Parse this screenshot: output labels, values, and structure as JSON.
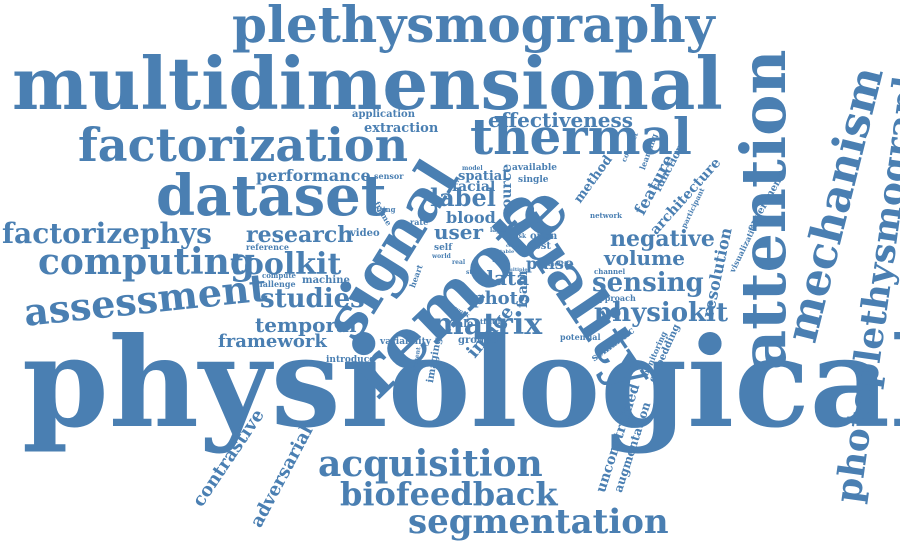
{
  "palette": {
    "word_color": "#4a7fb2",
    "background": "#ffffff"
  },
  "words": {
    "physiological": "physiological",
    "multidimensional": "multidimensional",
    "plethysmography": "plethysmography",
    "factorization": "factorization",
    "thermal": "thermal",
    "dataset": "dataset",
    "signal": "signal",
    "remote": "remote",
    "quality": "quality",
    "attention": "attention",
    "mechanism": "mechanism",
    "photoplethysmography": "photoplethysmography",
    "factorizephys": "factorizephys",
    "computing": "computing",
    "assessment": "assessment",
    "acquisition": "acquisition",
    "biofeedback": "biofeedback",
    "segmentation": "segmentation",
    "effectiveness": "effectiveness",
    "extraction": "extraction",
    "application": "application",
    "performance": "performance",
    "research": "research",
    "toolkit": "toolkit",
    "studies": "studies",
    "temporal": "temporal",
    "framework": "framework",
    "matrix": "matrix",
    "physiokit": "physiokit",
    "sensing": "sensing",
    "volume": "volume",
    "negative": "negative",
    "label": "label",
    "user": "user",
    "blood": "blood",
    "facial": "facial",
    "spatial": "spatial",
    "data": "data",
    "photo": "photo",
    "image": "image",
    "resolution": "resolution",
    "contrastive": "contrastive",
    "adversarial": "adversarial",
    "unconstrained": "unconstrained",
    "augmentation": "augmentation",
    "embedding": "embedding",
    "monitoring": "monitoring",
    "semantic": "semantic",
    "potential": "potential",
    "approach": "approach",
    "experiment": "experiment",
    "visualization": "visualization",
    "participant": "participant",
    "architecture": "architecture",
    "feature": "feature",
    "function": "function",
    "method": "method",
    "learning": "learning",
    "conduct": "conduct",
    "network": "network",
    "channel": "channel",
    "metric": "metric",
    "available": "available",
    "single": "single",
    "source": "source",
    "open": "open",
    "cost": "cost",
    "pulse": "pulse",
    "rate": "rate",
    "video": "video",
    "reference": "reference",
    "compute": "compute",
    "challenge": "challenge",
    "machine": "machine",
    "setting": "setting",
    "frame": "frame",
    "sensor": "sensor",
    "model": "model",
    "self": "self",
    "world": "world",
    "heart": "heart",
    "real": "real",
    "task": "task",
    "layer": "layer",
    "truth": "truth",
    "ground": "ground",
    "scale": "scale",
    "fsam": "fsam",
    "imaging": "imaging",
    "variability": "variability",
    "introduce": "introduce",
    "present": "present",
    "work": "work",
    "time": "time",
    "state": "state",
    "code": "code",
    "table": "table",
    "multiple": "multiple"
  }
}
